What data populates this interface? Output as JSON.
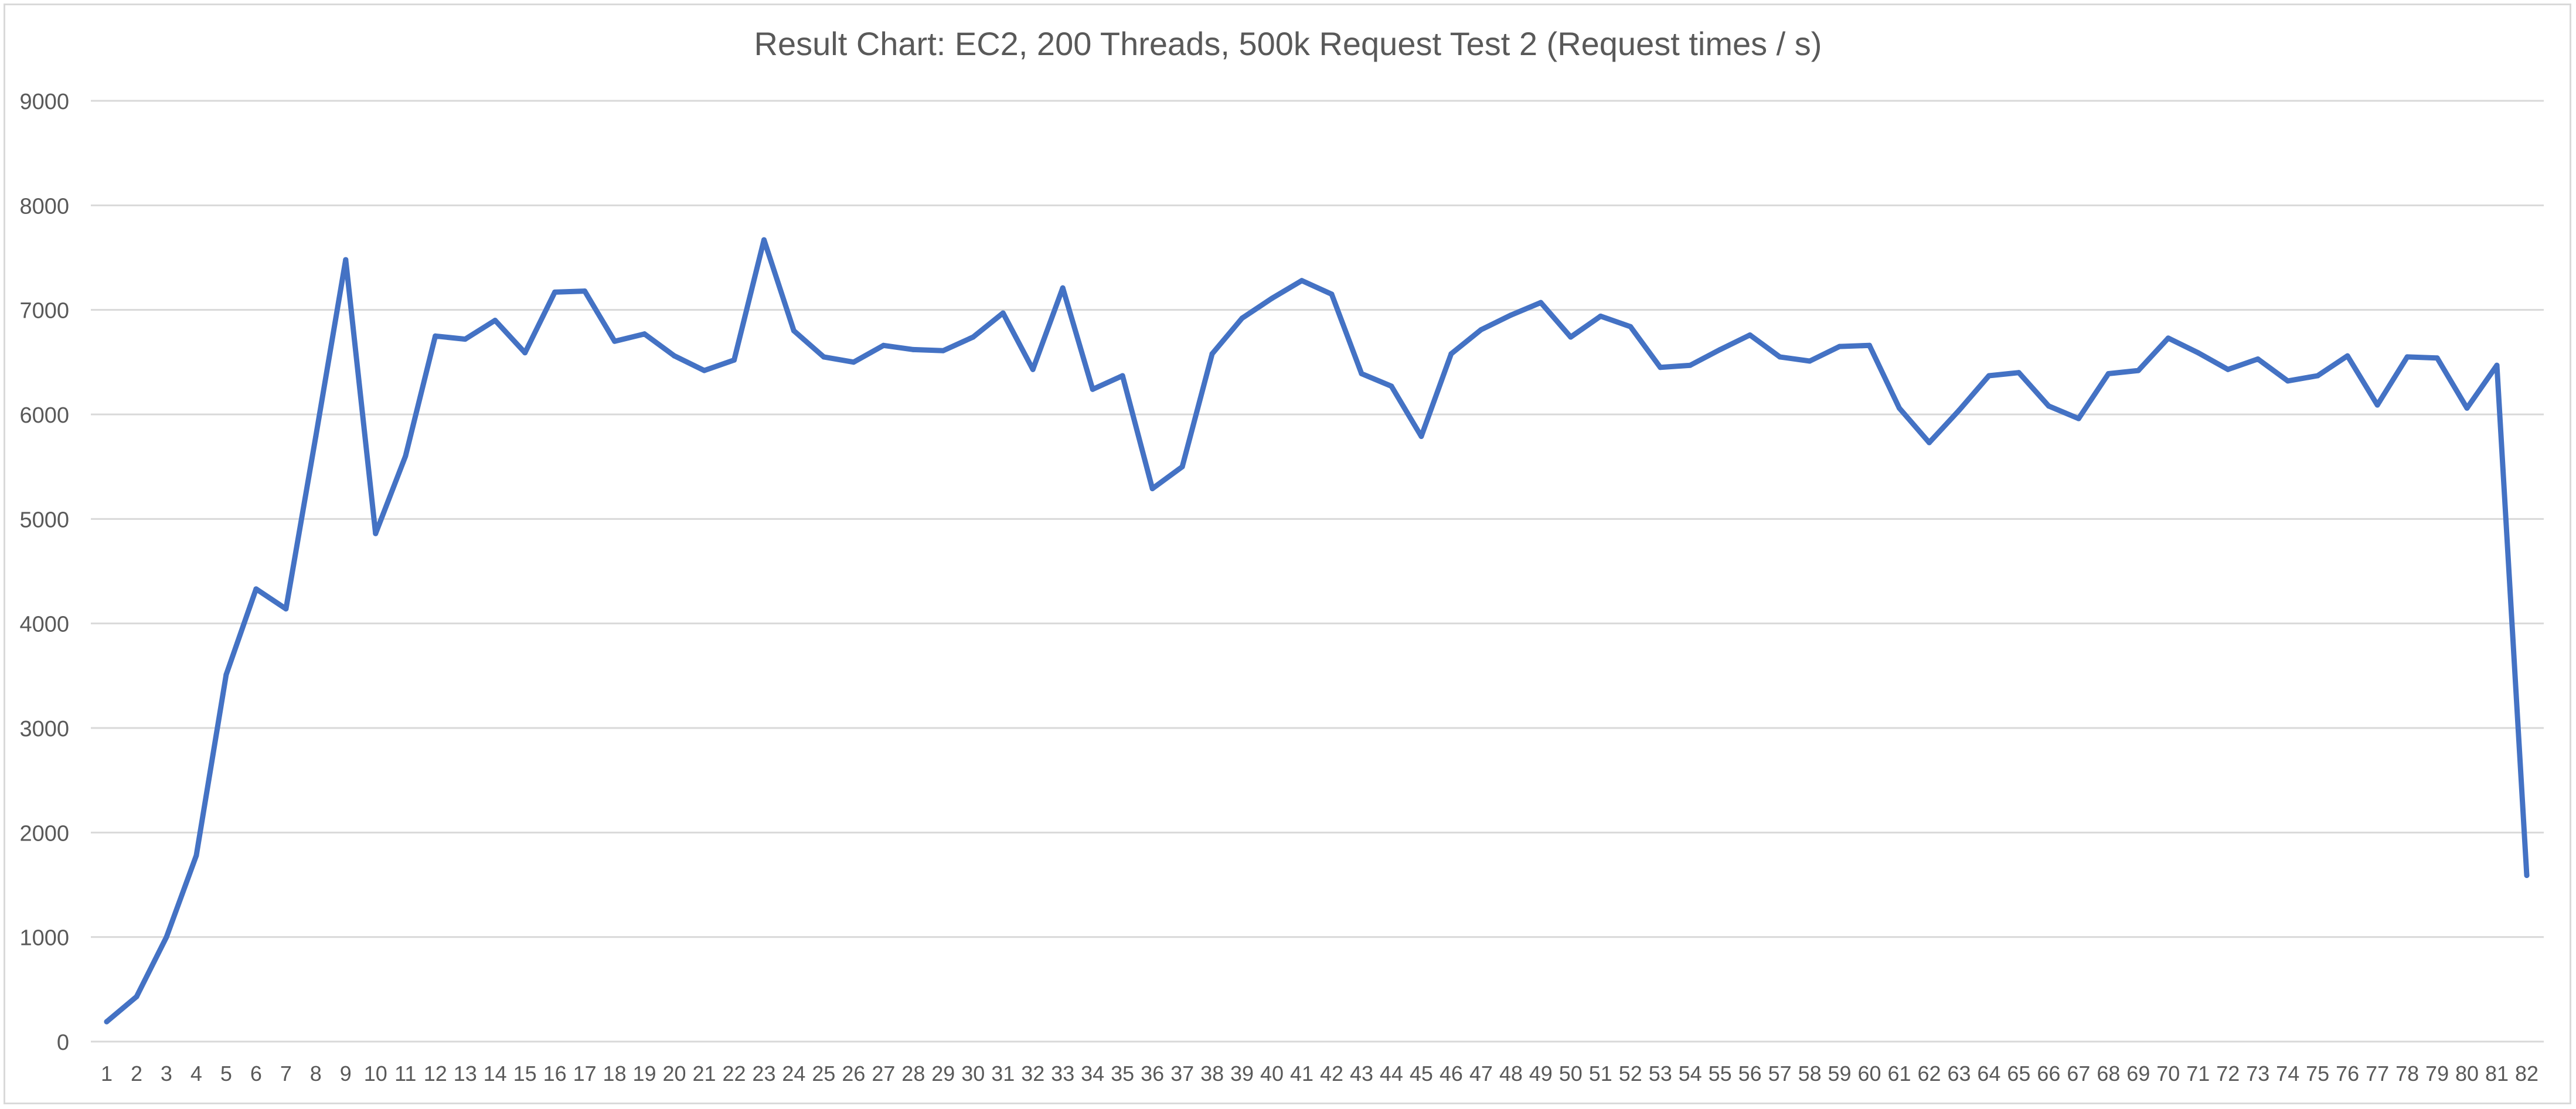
{
  "chart_data": {
    "type": "line",
    "title": "Result Chart: EC2, 200 Threads, 500k Request Test 2 (Request times / s)",
    "xlabel": "",
    "ylabel": "",
    "ylim": [
      0,
      9000
    ],
    "yticks": [
      0,
      1000,
      2000,
      3000,
      4000,
      5000,
      6000,
      7000,
      8000,
      9000
    ],
    "grid": true,
    "legend": "none",
    "line_color": "#4472c4",
    "grid_color": "#d9d9d9",
    "x": [
      1,
      2,
      3,
      4,
      5,
      6,
      7,
      8,
      9,
      10,
      11,
      12,
      13,
      14,
      15,
      16,
      17,
      18,
      19,
      20,
      21,
      22,
      23,
      24,
      25,
      26,
      27,
      28,
      29,
      30,
      31,
      32,
      33,
      34,
      35,
      36,
      37,
      38,
      39,
      40,
      41,
      42,
      43,
      44,
      45,
      46,
      47,
      48,
      49,
      50,
      51,
      52,
      53,
      54,
      55,
      56,
      57,
      58,
      59,
      60,
      61,
      62,
      63,
      64,
      65,
      66,
      67,
      68,
      69,
      70,
      71,
      72,
      73,
      74,
      75,
      76,
      77,
      78,
      79,
      80,
      81,
      82
    ],
    "series": [
      {
        "values": [
          190,
          430,
          1000,
          1780,
          3510,
          4330,
          4140,
          5790,
          7480,
          4860,
          5600,
          6750,
          6720,
          6900,
          6590,
          7170,
          7180,
          6700,
          6770,
          6560,
          6420,
          6520,
          7670,
          6800,
          6550,
          6500,
          6660,
          6620,
          6610,
          6740,
          6970,
          6430,
          7210,
          6240,
          6370,
          5290,
          5500,
          6580,
          6920,
          7110,
          7280,
          7150,
          6390,
          6270,
          5790,
          6580,
          6810,
          6950,
          7070,
          6740,
          6940,
          6840,
          6450,
          6470,
          6620,
          6760,
          6550,
          6510,
          6650,
          6660,
          6060,
          5730,
          6040,
          6370,
          6400,
          6080,
          5960,
          6390,
          6420,
          6730,
          6590,
          6430,
          6530,
          6320,
          6370,
          6560,
          6090,
          6550,
          6540,
          6060,
          6470,
          1590
        ]
      }
    ]
  }
}
